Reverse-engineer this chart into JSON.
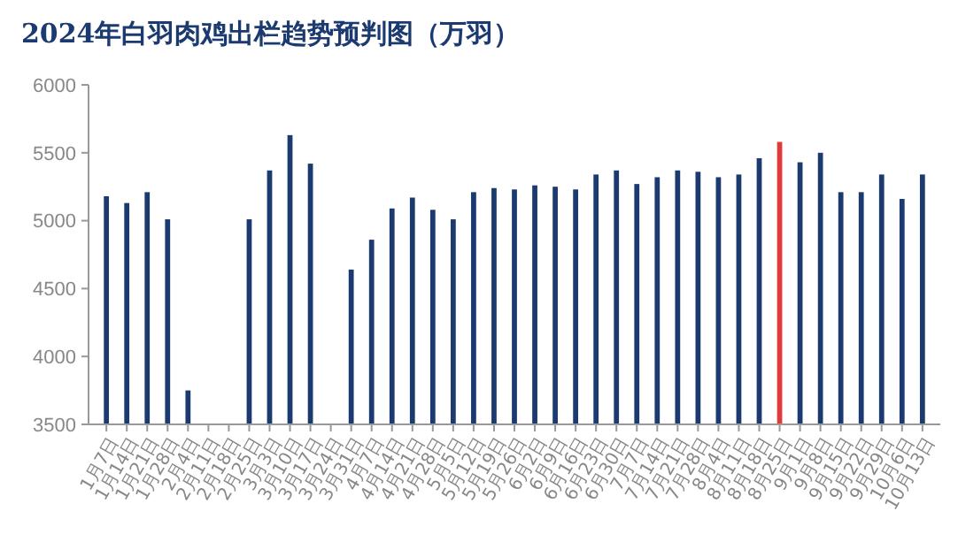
{
  "chart_data": {
    "type": "bar",
    "title": "2024年白羽肉鸡出栏趋势预判图（万羽）",
    "categories": [
      "1月7日",
      "1月14日",
      "1月21日",
      "1月28日",
      "2月4日",
      "2月11日",
      "2月18日",
      "2月25日",
      "3月3日",
      "3月10日",
      "3月17日",
      "3月24日",
      "3月31日",
      "4月7日",
      "4月14日",
      "4月21日",
      "4月28日",
      "5月5日",
      "5月12日",
      "5月19日",
      "5月26日",
      "6月2日",
      "6月9日",
      "6月16日",
      "6月23日",
      "6月30日",
      "7月7日",
      "7月14日",
      "7月21日",
      "7月28日",
      "8月4日",
      "8月11日",
      "8月18日",
      "8月25日",
      "9月1日",
      "9月8日",
      "9月15日",
      "9月22日",
      "9月29日",
      "10月6日",
      "10月13日"
    ],
    "values": [
      5180,
      5130,
      5210,
      5010,
      3750,
      null,
      null,
      5010,
      5370,
      5630,
      5420,
      null,
      4640,
      4860,
      5090,
      5170,
      5080,
      5010,
      5210,
      5240,
      5230,
      5260,
      5250,
      5230,
      5340,
      5370,
      5270,
      5320,
      5370,
      5360,
      5320,
      5340,
      5460,
      5580,
      5430,
      5500,
      5210,
      5210,
      5340,
      5160,
      5340
    ],
    "colors": [
      "#1b3a6f",
      "#1b3a6f",
      "#1b3a6f",
      "#1b3a6f",
      "#1b3a6f",
      null,
      null,
      "#1b3a6f",
      "#1b3a6f",
      "#1b3a6f",
      "#1b3a6f",
      null,
      "#1b3a6f",
      "#1b3a6f",
      "#1b3a6f",
      "#1b3a6f",
      "#1b3a6f",
      "#1b3a6f",
      "#1b3a6f",
      "#1b3a6f",
      "#1b3a6f",
      "#1b3a6f",
      "#1b3a6f",
      "#1b3a6f",
      "#1b3a6f",
      "#1b3a6f",
      "#1b3a6f",
      "#1b3a6f",
      "#1b3a6f",
      "#1b3a6f",
      "#1b3a6f",
      "#1b3a6f",
      "#1b3a6f",
      "#e03a3a",
      "#1b3a6f",
      "#1b3a6f",
      "#1b3a6f",
      "#1b3a6f",
      "#1b3a6f",
      "#1b3a6f",
      "#1b3a6f"
    ],
    "ylim": [
      3500,
      6000
    ],
    "yticks": [
      3500,
      4000,
      4500,
      5000,
      5500,
      6000
    ],
    "grid": false
  }
}
